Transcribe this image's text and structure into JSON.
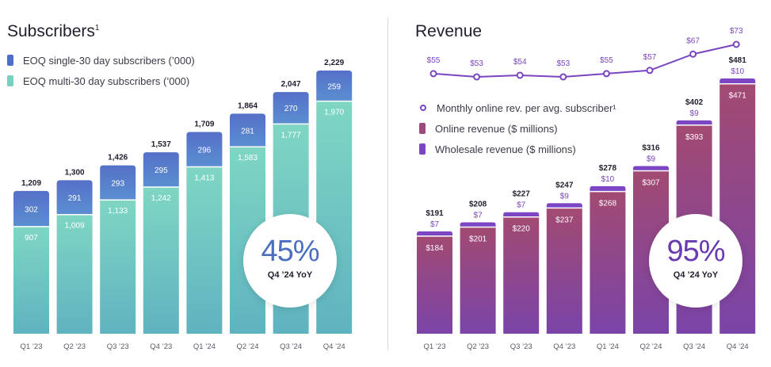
{
  "subscribers": {
    "title": "Subscribers",
    "title_sup": "1",
    "legend": [
      {
        "label": "EOQ single-30 day subscribers (’000)",
        "color": "#4d6fc4"
      },
      {
        "label": "EOQ multi-30 day subscribers  (’000)",
        "color": "#79d0bf"
      }
    ],
    "badge": {
      "value": "45%",
      "label": "Q4 ’24 YoY"
    }
  },
  "revenue": {
    "title": "Revenue",
    "legend": [
      {
        "label": "Monthly online rev. per avg. subscriber¹",
        "color": "#7a45c0"
      },
      {
        "label": "Online revenue ($ millions)",
        "color": "#9a4a7c"
      },
      {
        "label": "Wholesale revenue ($ millions)",
        "color": "#7b45c3"
      }
    ],
    "badge": {
      "value": "95%",
      "label": "Q4 ’24 YoY"
    }
  },
  "chart_data": [
    {
      "type": "bar",
      "stacked": true,
      "title": "Subscribers",
      "categories": [
        "Q1 ’23",
        "Q2 ’23",
        "Q3 ’23",
        "Q4 ’23",
        "Q1 ’24",
        "Q2 ’24",
        "Q3 ’24",
        "Q4 ’24"
      ],
      "series": [
        {
          "name": "EOQ multi-30 day subscribers  (’000)",
          "values": [
            907,
            1009,
            1133,
            1242,
            1413,
            1583,
            1777,
            1970
          ],
          "labels": [
            "907",
            "1,009",
            "1,133",
            "1,242",
            "1,413",
            "1,583",
            "1,777",
            "1,970"
          ]
        },
        {
          "name": "EOQ single-30 day subscribers (’000)",
          "values": [
            302,
            291,
            293,
            295,
            296,
            281,
            270,
            259
          ],
          "labels": [
            "302",
            "291",
            "293",
            "295",
            "296",
            "281",
            "270",
            "259"
          ]
        }
      ],
      "totals": [
        "1,209",
        "1,300",
        "1,426",
        "1,537",
        "1,709",
        "1,864",
        "2,047",
        "2,229"
      ],
      "ylim": [
        0,
        2229
      ]
    },
    {
      "type": "bar",
      "stacked": true,
      "title": "Revenue",
      "categories": [
        "Q1 ’23",
        "Q2 ’23",
        "Q3 ’23",
        "Q4 ’23",
        "Q1 ’24",
        "Q2 ’24",
        "Q3 ’24",
        "Q4 ’24"
      ],
      "series": [
        {
          "name": "Online revenue ($ millions)",
          "values": [
            184,
            201,
            220,
            237,
            268,
            307,
            393,
            471
          ],
          "labels": [
            "$184",
            "$201",
            "$220",
            "$237",
            "$268",
            "$307",
            "$393",
            "$471"
          ]
        },
        {
          "name": "Wholesale revenue ($ millions)",
          "values": [
            7,
            7,
            7,
            9,
            10,
            9,
            9,
            10
          ],
          "labels": [
            "$7",
            "$7",
            "$7",
            "$9",
            "$10",
            "$9",
            "$9",
            "$10"
          ]
        }
      ],
      "totals": [
        "$191",
        "$208",
        "$227",
        "$247",
        "$278",
        "$316",
        "$402",
        "$481"
      ],
      "ylim": [
        0,
        481
      ]
    },
    {
      "type": "line",
      "name": "Monthly online rev. per avg. subscriber¹",
      "categories": [
        "Q1 ’23",
        "Q2 ’23",
        "Q3 ’23",
        "Q4 ’23",
        "Q1 ’24",
        "Q2 ’24",
        "Q3 ’24",
        "Q4 ’24"
      ],
      "values": [
        55,
        53,
        54,
        53,
        55,
        57,
        67,
        73
      ],
      "labels": [
        "$55",
        "$53",
        "$54",
        "$53",
        "$55",
        "$57",
        "$67",
        "$73"
      ]
    }
  ]
}
